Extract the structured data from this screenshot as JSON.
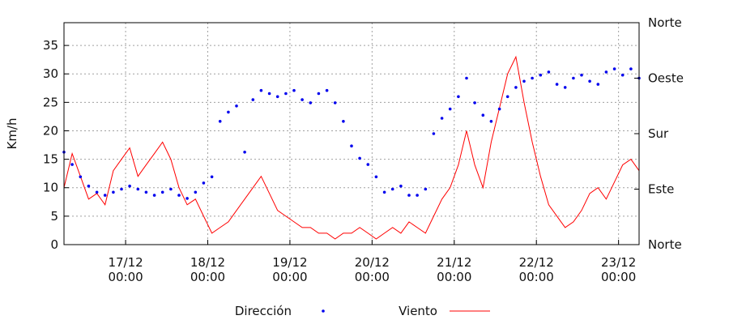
{
  "chart_data": {
    "type": "line",
    "title": "",
    "ylabel": "Km/h",
    "ylim": [
      0,
      39
    ],
    "yticks": [
      "0",
      "5",
      "10",
      "15",
      "20",
      "25",
      "30",
      "35"
    ],
    "y2_ticks": [
      "Norte",
      "Este",
      "Sur",
      "Oeste",
      "Norte"
    ],
    "y2_range_degrees": [
      0,
      360
    ],
    "x_range_days": [
      16.25,
      23.25
    ],
    "xticks": [
      {
        "day": 17,
        "label_line1": "17/12",
        "label_line2": "00:00"
      },
      {
        "day": 18,
        "label_line1": "18/12",
        "label_line2": "00:00"
      },
      {
        "day": 19,
        "label_line1": "19/12",
        "label_line2": "00:00"
      },
      {
        "day": 20,
        "label_line1": "20/12",
        "label_line2": "00:00"
      },
      {
        "day": 21,
        "label_line1": "21/12",
        "label_line2": "00:00"
      },
      {
        "day": 22,
        "label_line1": "22/12",
        "label_line2": "00:00"
      },
      {
        "day": 23,
        "label_line1": "23/12",
        "label_line2": "00:00"
      }
    ],
    "grid": true,
    "legend_position": "bottom",
    "series": [
      {
        "name": "Viento",
        "kind": "line",
        "axis": "left",
        "color": "#ff0000",
        "x": [
          16.25,
          16.35,
          16.45,
          16.55,
          16.65,
          16.75,
          16.85,
          16.95,
          17.05,
          17.15,
          17.25,
          17.35,
          17.45,
          17.55,
          17.65,
          17.75,
          17.85,
          17.95,
          18.05,
          18.15,
          18.25,
          18.35,
          18.45,
          18.55,
          18.65,
          18.75,
          18.85,
          18.95,
          19.05,
          19.15,
          19.25,
          19.35,
          19.45,
          19.55,
          19.65,
          19.75,
          19.85,
          19.95,
          20.05,
          20.15,
          20.25,
          20.35,
          20.45,
          20.55,
          20.65,
          20.75,
          20.85,
          20.95,
          21.05,
          21.15,
          21.25,
          21.35,
          21.45,
          21.55,
          21.65,
          21.75,
          21.85,
          21.95,
          22.05,
          22.15,
          22.25,
          22.35,
          22.45,
          22.55,
          22.65,
          22.75,
          22.85,
          22.95,
          23.05,
          23.15,
          23.25
        ],
        "y": [
          10,
          16,
          12,
          8,
          9,
          7,
          13,
          15,
          17,
          12,
          14,
          16,
          18,
          15,
          10,
          7,
          8,
          5,
          2,
          3,
          4,
          6,
          8,
          10,
          12,
          9,
          6,
          5,
          4,
          3,
          3,
          2,
          2,
          1,
          2,
          2,
          3,
          2,
          1,
          2,
          3,
          2,
          4,
          3,
          2,
          5,
          8,
          10,
          14,
          20,
          14,
          10,
          18,
          24,
          30,
          33,
          25,
          18,
          12,
          7,
          5,
          3,
          4,
          6,
          9,
          10,
          8,
          11,
          14,
          15,
          13
        ]
      },
      {
        "name": "Dirección",
        "kind": "scatter",
        "axis": "right",
        "color": "#0000ee",
        "x": [
          16.25,
          16.35,
          16.45,
          16.55,
          16.65,
          16.75,
          16.85,
          16.95,
          17.05,
          17.15,
          17.25,
          17.35,
          17.45,
          17.55,
          17.65,
          17.75,
          17.85,
          17.95,
          18.05,
          18.15,
          18.25,
          18.35,
          18.45,
          18.55,
          18.65,
          18.75,
          18.85,
          18.95,
          19.05,
          19.15,
          19.25,
          19.35,
          19.45,
          19.55,
          19.65,
          19.75,
          19.85,
          19.95,
          20.05,
          20.15,
          20.25,
          20.35,
          20.45,
          20.55,
          20.65,
          20.75,
          20.85,
          20.95,
          21.05,
          21.15,
          21.25,
          21.35,
          21.45,
          21.55,
          21.65,
          21.75,
          21.85,
          21.95,
          22.05,
          22.15,
          22.25,
          22.35,
          22.45,
          22.55,
          22.65,
          22.75,
          22.85,
          22.95,
          23.05,
          23.15,
          23.25
        ],
        "y": [
          150,
          130,
          110,
          95,
          85,
          80,
          85,
          90,
          95,
          90,
          85,
          80,
          85,
          90,
          80,
          75,
          85,
          100,
          110,
          200,
          215,
          225,
          150,
          235,
          250,
          245,
          240,
          245,
          250,
          235,
          230,
          245,
          250,
          230,
          200,
          160,
          140,
          130,
          110,
          85,
          90,
          95,
          80,
          80,
          90,
          180,
          205,
          220,
          240,
          270,
          230,
          210,
          200,
          220,
          240,
          255,
          265,
          270,
          275,
          280,
          260,
          255,
          270,
          275,
          265,
          260,
          280,
          285,
          275,
          285,
          270
        ]
      }
    ]
  },
  "legend": {
    "direction_label": "Dirección",
    "wind_label": "Viento"
  }
}
